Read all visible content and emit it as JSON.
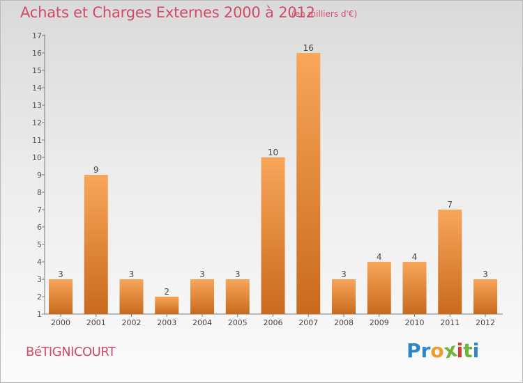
{
  "header": {
    "title": "Achats et Charges Externes 2000 à 2012",
    "unit": "(en milliers d'€)"
  },
  "footer": {
    "town": "BéTIGNICOURT",
    "logo_text": "Proxiti",
    "logo_letters": [
      {
        "ch": "P",
        "color": "#2f86c6"
      },
      {
        "ch": "r",
        "color": "#2f86c6"
      },
      {
        "ch": "o",
        "color": "#e9a02a"
      },
      {
        "ch": "x",
        "color": "#6fb33a"
      },
      {
        "ch": "i",
        "color": "#d63a3a"
      },
      {
        "ch": "t",
        "color": "#6fb33a"
      },
      {
        "ch": "i",
        "color": "#2f86c6"
      }
    ]
  },
  "chart_data": {
    "type": "bar",
    "title": "Achats et Charges Externes 2000 à 2012",
    "subtitle": "(en milliers d'€)",
    "categories": [
      "2000",
      "2001",
      "2002",
      "2003",
      "2004",
      "2005",
      "2006",
      "2007",
      "2008",
      "2009",
      "2010",
      "2011",
      "2012"
    ],
    "values": [
      3,
      9,
      3,
      2,
      3,
      3,
      10,
      16,
      3,
      4,
      4,
      7,
      3
    ],
    "data_labels": [
      "3",
      "9",
      "3",
      "2",
      "3",
      "3",
      "10",
      "16",
      "3",
      "4",
      "4",
      "7",
      "3"
    ],
    "yticks": [
      1,
      2,
      3,
      4,
      5,
      6,
      7,
      8,
      9,
      10,
      11,
      12,
      13,
      14,
      15,
      16,
      17
    ],
    "ylim": [
      1,
      17
    ],
    "grid": false,
    "bar_color_top": "#f8a65a",
    "bar_color_bottom": "#c96a1e",
    "label_color": "#444444"
  }
}
